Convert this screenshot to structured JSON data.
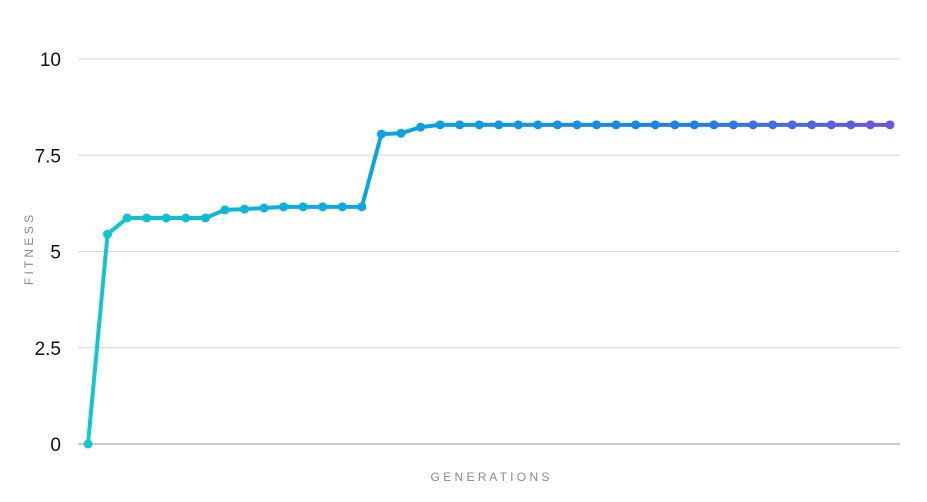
{
  "chart_data": {
    "type": "line",
    "xlabel": "G E N E R A T I O N S",
    "ylabel": "F I T N E S S",
    "ylim": [
      0,
      10
    ],
    "yticks": [
      "0",
      "2.5",
      "5",
      "7.5",
      "10"
    ],
    "ytick_values": [
      0,
      2.5,
      5,
      7.5,
      10
    ],
    "grid": true,
    "x": [
      0,
      1,
      2,
      3,
      4,
      5,
      6,
      7,
      8,
      9,
      10,
      11,
      12,
      13,
      14,
      15,
      16,
      17,
      18,
      19,
      20,
      21,
      22,
      23,
      24,
      25,
      26,
      27,
      28,
      29,
      30,
      31,
      32,
      33,
      34,
      35,
      36,
      37,
      38,
      39,
      40,
      41
    ],
    "series": [
      {
        "values": [
          0,
          5.45,
          5.87,
          5.87,
          5.87,
          5.87,
          5.87,
          6.08,
          6.1,
          6.13,
          6.16,
          6.16,
          6.16,
          6.16,
          6.16,
          8.05,
          8.07,
          8.23,
          8.29,
          8.29,
          8.29,
          8.29,
          8.29,
          8.29,
          8.29,
          8.29,
          8.29,
          8.29,
          8.29,
          8.29,
          8.29,
          8.29,
          8.29,
          8.29,
          8.29,
          8.29,
          8.29,
          8.29,
          8.29,
          8.29,
          8.29,
          8.29
        ],
        "gradient": [
          "#13c6cf",
          "#0aa6e0",
          "#1e7fe6",
          "#6b55e0"
        ]
      }
    ]
  }
}
